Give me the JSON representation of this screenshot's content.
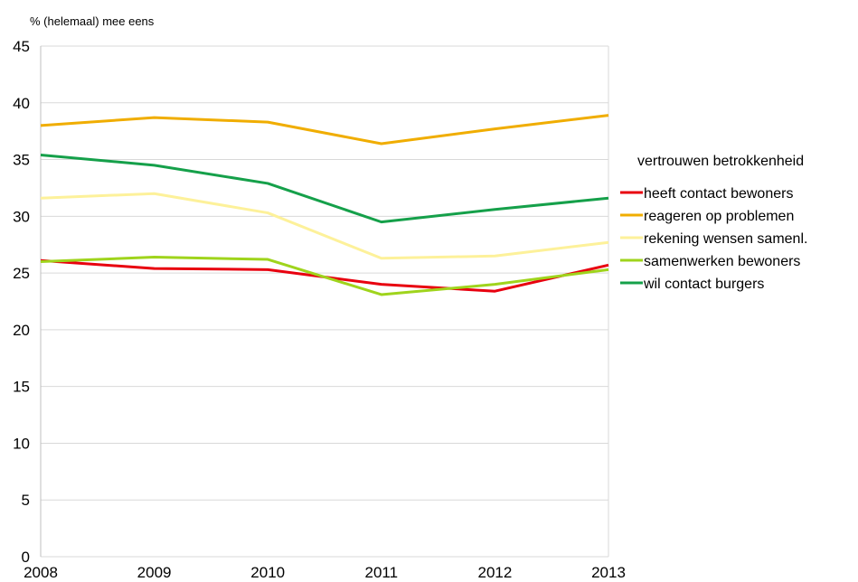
{
  "chart_data": {
    "type": "line",
    "ylabel": "% (helemaal) mee eens",
    "x": [
      "2008",
      "2009",
      "2010",
      "2011",
      "2012",
      "2013"
    ],
    "ylim": [
      0,
      45
    ],
    "yticks": [
      "0",
      "5",
      "10",
      "15",
      "20",
      "25",
      "30",
      "35",
      "40",
      "45"
    ],
    "grid": true,
    "legend": {
      "title": "vertrouwen betrokkenheid",
      "placement": "right"
    },
    "series": [
      {
        "name": "heeft contact bewoners",
        "color": "#e8000f",
        "values": [
          26.1,
          25.4,
          25.3,
          24.0,
          23.4,
          25.7
        ]
      },
      {
        "name": "reageren op problemen",
        "color": "#f0ad00",
        "values": [
          38.0,
          38.7,
          38.3,
          36.4,
          37.7,
          38.9
        ]
      },
      {
        "name": "rekening wensen samenl.",
        "color": "#fdf19a",
        "values": [
          31.6,
          32.0,
          30.3,
          26.3,
          26.5,
          27.7
        ]
      },
      {
        "name": "samenwerken bewoners",
        "color": "#9fd41c",
        "values": [
          26.0,
          26.4,
          26.2,
          23.1,
          24.0,
          25.3
        ]
      },
      {
        "name": "wil contact burgers",
        "color": "#15a04a",
        "values": [
          35.4,
          34.5,
          32.9,
          29.5,
          30.6,
          31.6
        ]
      }
    ]
  }
}
